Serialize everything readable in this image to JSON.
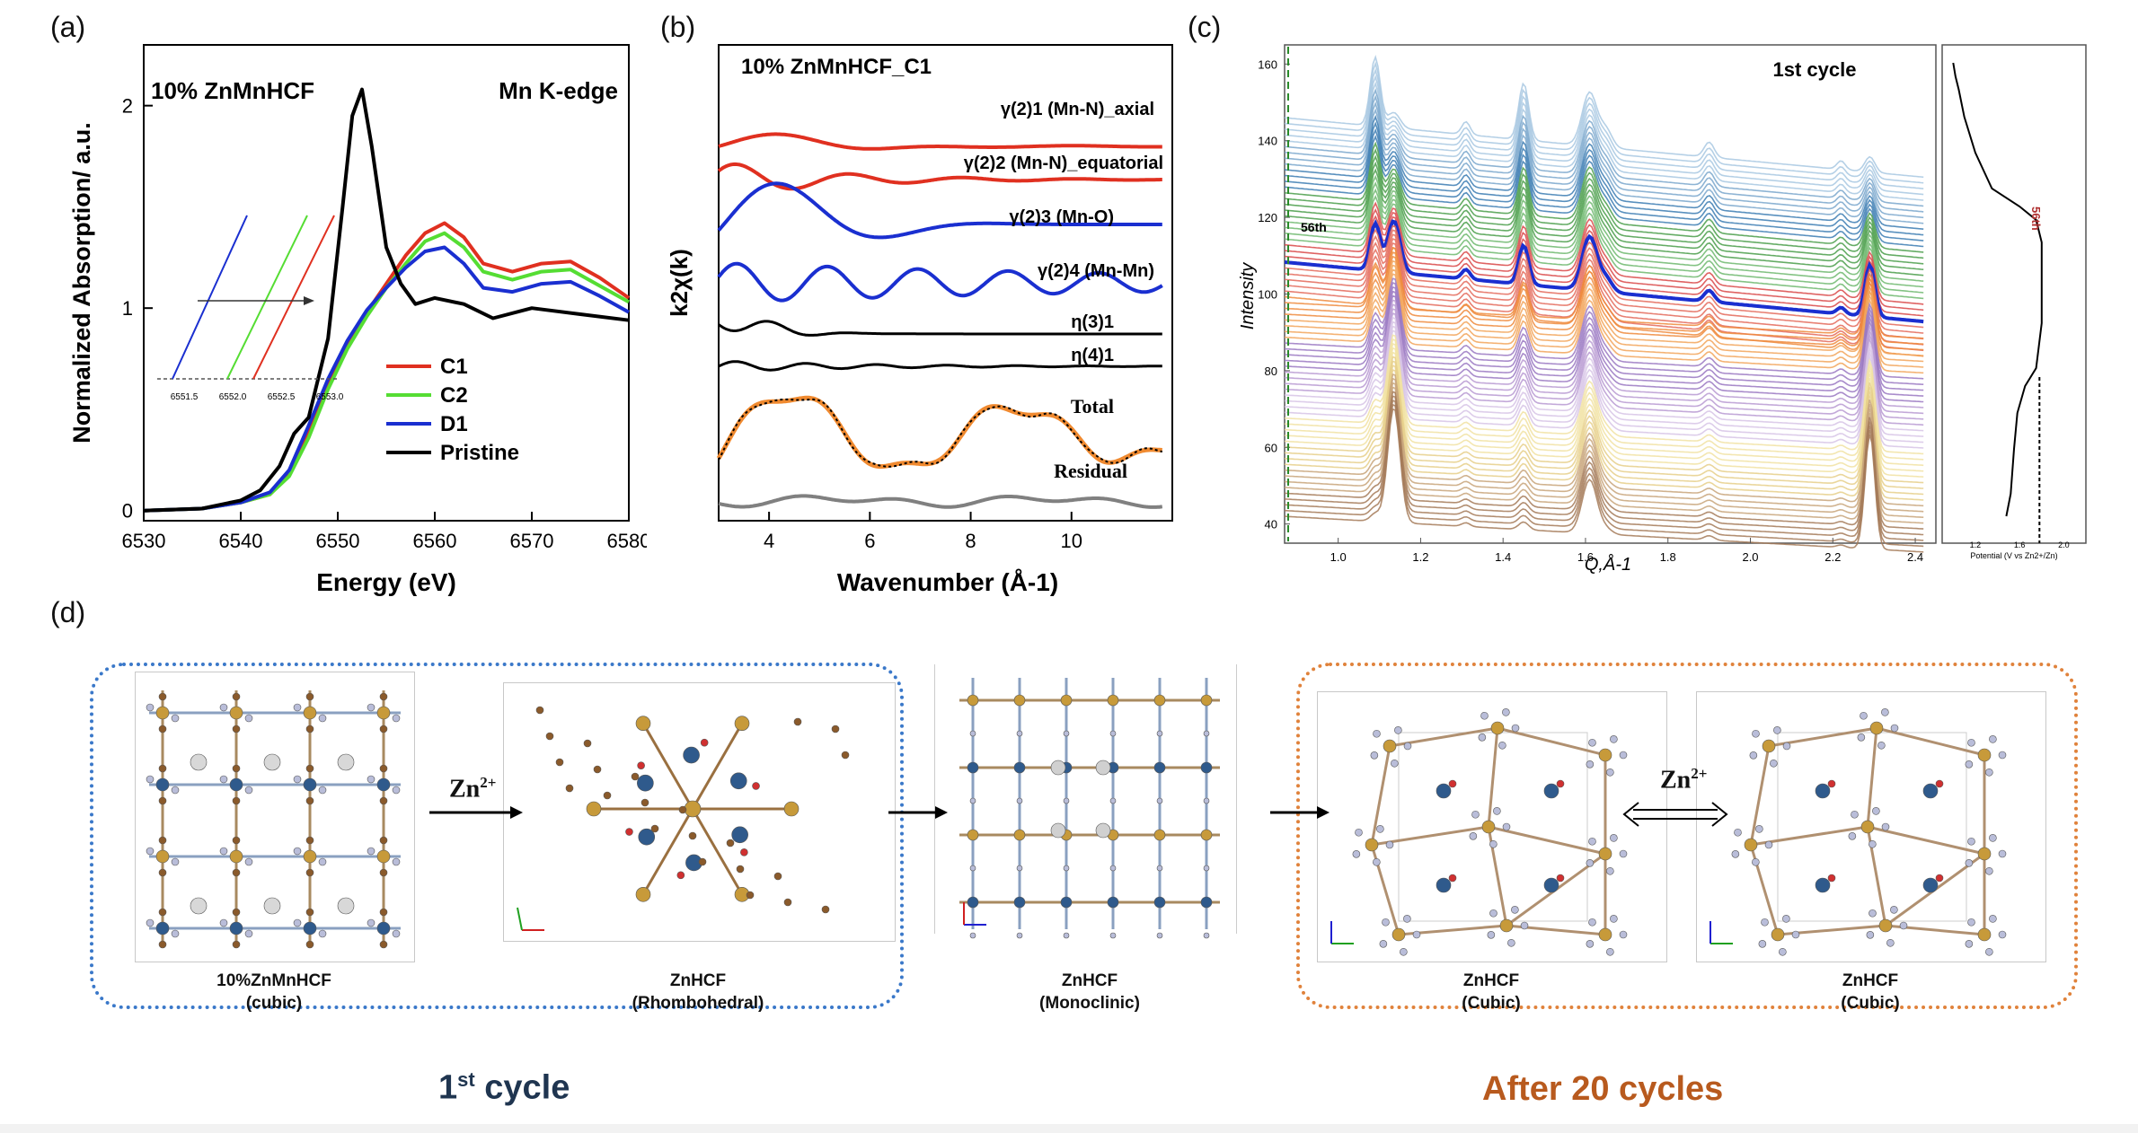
{
  "panel_labels": {
    "a": "(a)",
    "b": "(b)",
    "c": "(c)",
    "d": "(d)"
  },
  "chart_data": [
    {
      "type": "line",
      "panel": "(a)",
      "annotations": [
        "10% ZnMnHCF",
        "Mn K-edge"
      ],
      "xlabel": "Energy (eV)",
      "ylabel": "Normalized Absorption/ a.u.",
      "xlim": [
        6530,
        6580
      ],
      "ylim": [
        -0.05,
        2.3
      ],
      "xticks": [
        "6530",
        "6540",
        "6550",
        "6560",
        "6570",
        "6580"
      ],
      "yticks": [
        "0",
        "1",
        "2"
      ],
      "legend_position": "center-right",
      "series": [
        {
          "name": "C1",
          "color": "#e03020",
          "x": [
            6530,
            6536,
            6540,
            6543,
            6545,
            6547,
            6549,
            6551,
            6553,
            6555,
            6557,
            6559,
            6561,
            6563,
            6565,
            6568,
            6571,
            6574,
            6577,
            6580
          ],
          "y": [
            0.0,
            0.01,
            0.04,
            0.08,
            0.18,
            0.38,
            0.62,
            0.82,
            0.98,
            1.12,
            1.26,
            1.37,
            1.42,
            1.35,
            1.22,
            1.18,
            1.22,
            1.23,
            1.15,
            1.05
          ]
        },
        {
          "name": "C2",
          "color": "#55dd33",
          "x": [
            6530,
            6536,
            6540,
            6543,
            6545,
            6547,
            6549,
            6551,
            6553,
            6555,
            6557,
            6559,
            6561,
            6563,
            6565,
            6568,
            6571,
            6574,
            6577,
            6580
          ],
          "y": [
            0.0,
            0.01,
            0.04,
            0.08,
            0.17,
            0.36,
            0.6,
            0.8,
            0.96,
            1.1,
            1.22,
            1.33,
            1.37,
            1.3,
            1.18,
            1.14,
            1.18,
            1.19,
            1.11,
            1.03
          ]
        },
        {
          "name": "D1",
          "color": "#1a2fd0",
          "x": [
            6530,
            6536,
            6540,
            6543,
            6545,
            6547,
            6549,
            6551,
            6553,
            6555,
            6557,
            6559,
            6561,
            6563,
            6565,
            6568,
            6571,
            6574,
            6577,
            6580
          ],
          "y": [
            0.0,
            0.01,
            0.04,
            0.09,
            0.2,
            0.42,
            0.65,
            0.84,
            0.99,
            1.1,
            1.2,
            1.28,
            1.3,
            1.22,
            1.1,
            1.08,
            1.12,
            1.13,
            1.06,
            0.98
          ]
        },
        {
          "name": "Pristine",
          "color": "#000000",
          "x": [
            6530,
            6536,
            6540,
            6542,
            6544,
            6545.5,
            6547,
            6549,
            6550.5,
            6551.5,
            6552.5,
            6553.5,
            6555,
            6556.5,
            6558,
            6560,
            6563,
            6566,
            6570,
            6575,
            6580
          ],
          "y": [
            0.0,
            0.01,
            0.05,
            0.1,
            0.22,
            0.38,
            0.46,
            0.85,
            1.5,
            1.95,
            2.08,
            1.8,
            1.3,
            1.12,
            1.02,
            1.05,
            1.02,
            0.95,
            1.0,
            0.97,
            0.94
          ]
        }
      ],
      "inset": {
        "xticks": [
          "6551.5",
          "6552.0",
          "6552.5",
          "6553.0"
        ]
      }
    },
    {
      "type": "line",
      "panel": "(b)",
      "title": "10% ZnMnHCF_C1",
      "xlabel": "Wavenumber (Å-1)",
      "ylabel": "k2χ(k)",
      "xlim": [
        3,
        12
      ],
      "xticks": [
        "4",
        "6",
        "8",
        "10"
      ],
      "series": [
        {
          "name": "γ(2)1 (Mn-N)_axial",
          "color": "#e03020"
        },
        {
          "name": "γ(2)2 (Mn-N)_equatorial",
          "color": "#e03020"
        },
        {
          "name": "γ(2)3 (Mn-O)",
          "color": "#1a2fd0"
        },
        {
          "name": "γ(2)4 (Mn-Mn)",
          "color": "#1a2fd0"
        },
        {
          "name": "η(3)1",
          "color": "#000000"
        },
        {
          "name": "η(4)1",
          "color": "#000000"
        },
        {
          "name": "Total",
          "color": "#f08a30"
        },
        {
          "name": "Residual",
          "color": "#808080"
        }
      ]
    },
    {
      "type": "line",
      "panel": "(c)",
      "title": "1st cycle",
      "xlabel": "Q,Å-1",
      "ylabel": "Intensity",
      "xlim": [
        0.87,
        2.45
      ],
      "ylim": [
        35,
        165
      ],
      "xticks": [
        "1.0",
        "1.2",
        "1.4",
        "1.6",
        "1.8",
        "2.0",
        "2.2",
        "2.4"
      ],
      "yticks": [
        "40",
        "60",
        "80",
        "100",
        "120",
        "140",
        "160"
      ],
      "highlight": "56th",
      "side_plot": {
        "xlabel": "Potential (V vs Zn2+/Zn)",
        "xticks": [
          "1.2",
          "1.6",
          "2.0"
        ],
        "marker": "56th"
      }
    }
  ],
  "structures": {
    "caption_1": [
      "10%ZnMnHCF",
      "(cubic)"
    ],
    "arrow_1": "Zn2+",
    "caption_2": [
      "ZnHCF",
      "(Rhombohedral)"
    ],
    "caption_3": [
      "ZnHCF",
      "(Monoclinic)"
    ],
    "caption_4": [
      "ZnHCF",
      "(Cubic)"
    ],
    "arrow_4": "Zn2+",
    "caption_5": [
      "ZnHCF",
      "(Cubic)"
    ],
    "group_1": "1st cycle",
    "group_2": "After 20 cycles"
  }
}
